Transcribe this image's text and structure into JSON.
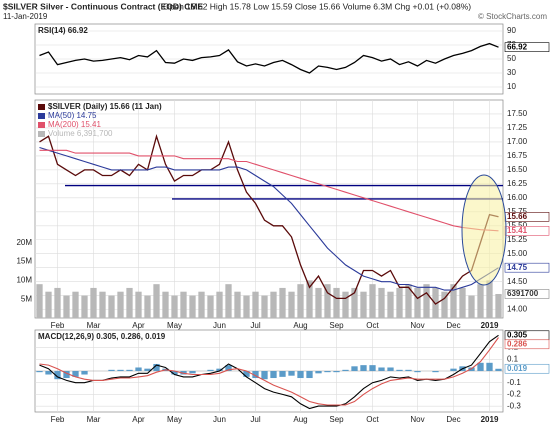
{
  "header": {
    "title": "$SILVER Silver - Continuous Contract (EOD) CME",
    "date": "11-Jan-2019",
    "quote": "Open 15.62 High 15.78 Low 15.59 Close 15.66 Volume 6.3M Chg +0.01 (+0.08%)",
    "credit": "© StockCharts.com"
  },
  "chart_data": [
    {
      "type": "line",
      "title": "RSI(14) 66.92",
      "color": "#000000",
      "ylim": [
        0,
        100
      ],
      "yticks": [
        90,
        70,
        50,
        30,
        10
      ],
      "grid": true,
      "values": [
        55,
        60,
        42,
        45,
        48,
        50,
        47,
        48,
        50,
        52,
        49,
        55,
        53,
        62,
        45,
        44,
        50,
        48,
        52,
        53,
        55,
        63,
        46,
        40,
        43,
        40,
        45,
        48,
        42,
        35,
        30,
        40,
        38,
        35,
        38,
        45,
        55,
        52,
        47,
        50,
        42,
        46,
        40,
        48,
        44,
        50,
        55,
        58,
        62,
        68,
        72,
        66.92
      ]
    },
    {
      "type": "line",
      "ylim": [
        13.85,
        17.75
      ],
      "yticks": [
        {
          "value": 14,
          "label": "14.00"
        },
        14.25,
        {
          "value": 14.5,
          "label": "14.50"
        },
        14.75,
        {
          "value": 15,
          "label": "15.00"
        },
        15.25,
        {
          "value": 15.5,
          "label": "15.50"
        },
        15.75,
        {
          "value": 16,
          "label": "16.00"
        },
        16.25,
        {
          "value": 16.5,
          "label": "16.50"
        },
        16.75,
        {
          "value": 17,
          "label": "17.00"
        },
        17.25,
        {
          "value": 17.5,
          "label": "17.50"
        }
      ],
      "y2lim": [
        0,
        58000000
      ],
      "y2ticks": [
        {
          "value": 5000000,
          "label": "5M"
        },
        {
          "value": 10000000,
          "label": "10M"
        },
        {
          "value": 15000000,
          "label": "15M"
        },
        {
          "value": 20000000,
          "label": "20M"
        }
      ],
      "grid": true,
      "reference_lines": [
        16.22,
        15.98
      ],
      "reference_color": "#000080",
      "categories": [
        null,
        null,
        "Feb",
        null,
        null,
        null,
        "Mar",
        null,
        null,
        null,
        null,
        "Apr",
        null,
        null,
        null,
        "May",
        null,
        null,
        null,
        null,
        "Jun",
        null,
        null,
        null,
        "Jul",
        null,
        null,
        null,
        null,
        "Aug",
        null,
        null,
        null,
        "Sep",
        null,
        null,
        null,
        "Oct",
        null,
        null,
        null,
        null,
        "Nov",
        null,
        null,
        null,
        "Dec",
        null,
        null,
        null,
        "2019",
        null
      ],
      "series": [
        {
          "name": "$SILVER (Daily) 15.66 (11 Jan)",
          "color": "#5a0a0a",
          "values": [
            17.0,
            17.1,
            16.6,
            16.5,
            16.4,
            16.5,
            16.5,
            16.4,
            16.4,
            16.5,
            16.4,
            16.6,
            16.5,
            17.1,
            16.6,
            16.3,
            16.4,
            16.4,
            16.5,
            16.5,
            16.6,
            17.0,
            16.5,
            16.1,
            15.9,
            15.6,
            15.5,
            15.5,
            15.3,
            14.8,
            14.4,
            14.6,
            14.3,
            14.2,
            14.2,
            14.3,
            14.7,
            14.7,
            14.6,
            14.7,
            14.4,
            14.4,
            14.2,
            14.3,
            14.1,
            14.2,
            14.4,
            14.6,
            14.7,
            15.2,
            15.7,
            15.66
          ]
        },
        {
          "name": "MA(50) 14.75",
          "color": "#2b3a9a",
          "values": [
            16.9,
            16.85,
            16.8,
            16.75,
            16.7,
            16.65,
            16.6,
            16.55,
            16.5,
            16.5,
            16.5,
            16.5,
            16.5,
            16.55,
            16.55,
            16.5,
            16.5,
            16.5,
            16.5,
            16.5,
            16.5,
            16.55,
            16.55,
            16.5,
            16.4,
            16.3,
            16.2,
            16.05,
            15.9,
            15.7,
            15.5,
            15.3,
            15.1,
            14.95,
            14.8,
            14.7,
            14.6,
            14.55,
            14.5,
            14.5,
            14.45,
            14.45,
            14.4,
            14.4,
            14.4,
            14.35,
            14.35,
            14.4,
            14.45,
            14.55,
            14.65,
            14.75
          ]
        },
        {
          "name": "MA(200) 15.41",
          "color": "#e0506a",
          "values": [
            16.85,
            16.85,
            16.85,
            16.85,
            16.8,
            16.8,
            16.8,
            16.8,
            16.8,
            16.8,
            16.8,
            16.75,
            16.75,
            16.75,
            16.75,
            16.75,
            16.7,
            16.7,
            16.7,
            16.7,
            16.7,
            16.7,
            16.65,
            16.65,
            16.6,
            16.55,
            16.5,
            16.45,
            16.4,
            16.35,
            16.3,
            16.25,
            16.2,
            16.15,
            16.1,
            16.05,
            16.0,
            15.95,
            15.9,
            15.85,
            15.8,
            15.75,
            15.7,
            15.65,
            15.6,
            15.55,
            15.5,
            15.47,
            15.45,
            15.43,
            15.42,
            15.41
          ]
        },
        {
          "name": "Volume 6,391,700",
          "color": "#b8b8b8",
          "type": "bar",
          "axis": "y2",
          "values": [
            9000000,
            7000000,
            8000000,
            6000000,
            7000000,
            6000000,
            8000000,
            7000000,
            6000000,
            7000000,
            8000000,
            7000000,
            6000000,
            9000000,
            7000000,
            6000000,
            7000000,
            6000000,
            7000000,
            6000000,
            7000000,
            9000000,
            7000000,
            6000000,
            7000000,
            6000000,
            7000000,
            8000000,
            7000000,
            9000000,
            10000000,
            8000000,
            9000000,
            8000000,
            7000000,
            8000000,
            7000000,
            9000000,
            8000000,
            7000000,
            8000000,
            9000000,
            8000000,
            9000000,
            8000000,
            7000000,
            9000000,
            8000000,
            6000000,
            9000000,
            10000000,
            6391700
          ]
        }
      ]
    },
    {
      "type": "line",
      "title": "MACD(12,26,9) 0.305, 0.286, 0.019",
      "ylim": [
        -0.35,
        0.35
      ],
      "yticks": [
        0.2,
        0.1,
        -0.1,
        -0.2,
        -0.3
      ],
      "grid": true,
      "categories": [
        null,
        null,
        "Feb",
        null,
        null,
        null,
        "Mar",
        null,
        null,
        null,
        null,
        "Apr",
        null,
        null,
        null,
        "May",
        null,
        null,
        null,
        null,
        "Jun",
        null,
        null,
        null,
        "Jul",
        null,
        null,
        null,
        null,
        "Aug",
        null,
        null,
        null,
        "Sep",
        null,
        null,
        null,
        "Oct",
        null,
        null,
        null,
        null,
        "Nov",
        null,
        null,
        null,
        "Dec",
        null,
        null,
        null,
        "2019",
        null
      ],
      "series": [
        {
          "color": "#5b9bc8",
          "type": "bar",
          "values": [
            -0.01,
            -0.03,
            -0.07,
            -0.06,
            -0.05,
            -0.03,
            0,
            0,
            0.01,
            0.01,
            0.01,
            0.03,
            0.02,
            0.06,
            0.02,
            -0.03,
            -0.03,
            -0.02,
            0,
            0.01,
            0.02,
            0.05,
            0,
            -0.05,
            -0.06,
            -0.07,
            -0.06,
            -0.05,
            -0.04,
            -0.06,
            -0.06,
            -0.02,
            -0.01,
            -0.01,
            0.01,
            0.04,
            0.05,
            0.05,
            0.03,
            0.03,
            0.01,
            0.01,
            -0.01,
            0,
            -0.01,
            0,
            0.02,
            0.04,
            0.03,
            0.07,
            0.07,
            0.019
          ]
        },
        {
          "color": "#000000",
          "values": [
            0.05,
            0.02,
            -0.05,
            -0.08,
            -0.1,
            -0.1,
            -0.08,
            -0.08,
            -0.06,
            -0.05,
            -0.05,
            -0.02,
            -0.02,
            0.05,
            0.03,
            -0.03,
            -0.05,
            -0.05,
            -0.03,
            -0.02,
            0.0,
            0.06,
            0.02,
            -0.05,
            -0.1,
            -0.15,
            -0.18,
            -0.2,
            -0.22,
            -0.28,
            -0.32,
            -0.3,
            -0.3,
            -0.3,
            -0.28,
            -0.22,
            -0.15,
            -0.1,
            -0.08,
            -0.05,
            -0.06,
            -0.05,
            -0.08,
            -0.07,
            -0.08,
            -0.07,
            -0.03,
            0.02,
            0.05,
            0.15,
            0.25,
            0.305
          ]
        },
        {
          "color": "#d9534f",
          "values": [
            0.06,
            0.05,
            0.02,
            -0.02,
            -0.05,
            -0.07,
            -0.08,
            -0.08,
            -0.07,
            -0.06,
            -0.06,
            -0.05,
            -0.04,
            -0.01,
            0.01,
            0.0,
            -0.02,
            -0.03,
            -0.03,
            -0.03,
            -0.02,
            0.01,
            0.02,
            0.0,
            -0.04,
            -0.08,
            -0.12,
            -0.15,
            -0.18,
            -0.22,
            -0.26,
            -0.28,
            -0.29,
            -0.29,
            -0.29,
            -0.26,
            -0.2,
            -0.15,
            -0.11,
            -0.08,
            -0.07,
            -0.06,
            -0.07,
            -0.07,
            -0.07,
            -0.07,
            -0.05,
            -0.02,
            0.02,
            0.08,
            0.18,
            0.286
          ]
        }
      ]
    }
  ]
}
